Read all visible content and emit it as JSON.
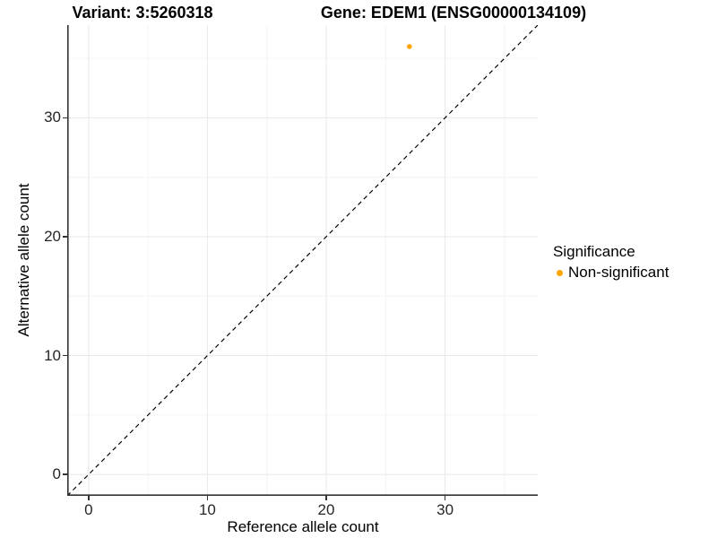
{
  "titles": {
    "variant": "Variant: 3:5260318",
    "gene": "Gene: EDEM1 (ENSG00000134109)"
  },
  "chart_data": {
    "type": "scatter",
    "xlabel": "Reference allele count",
    "ylabel": "Alternative allele count",
    "xlim": [
      -1.8,
      37.8
    ],
    "ylim": [
      -1.8,
      37.8
    ],
    "x_ticks": [
      0,
      10,
      20,
      30
    ],
    "y_ticks": [
      0,
      10,
      20,
      30
    ],
    "minor_ticks": [
      5,
      15,
      25,
      35
    ],
    "grid": true,
    "identity_line": {
      "style": "dashed",
      "color": "#000000",
      "from": -1.8,
      "to": 37.8
    },
    "series": [
      {
        "name": "Non-significant",
        "color": "#FFA500",
        "points": [
          {
            "x": 27,
            "y": 36
          }
        ]
      }
    ],
    "legend": {
      "title": "Significance",
      "position": "right",
      "entries": [
        {
          "label": "Non-significant",
          "color": "#FFA500"
        }
      ]
    }
  },
  "colors": {
    "axis_line": "#333333",
    "major_grid": "#e8e8e8",
    "minor_grid": "#f4f4f4",
    "tick_text": "#262626",
    "point": "#FFA500"
  }
}
